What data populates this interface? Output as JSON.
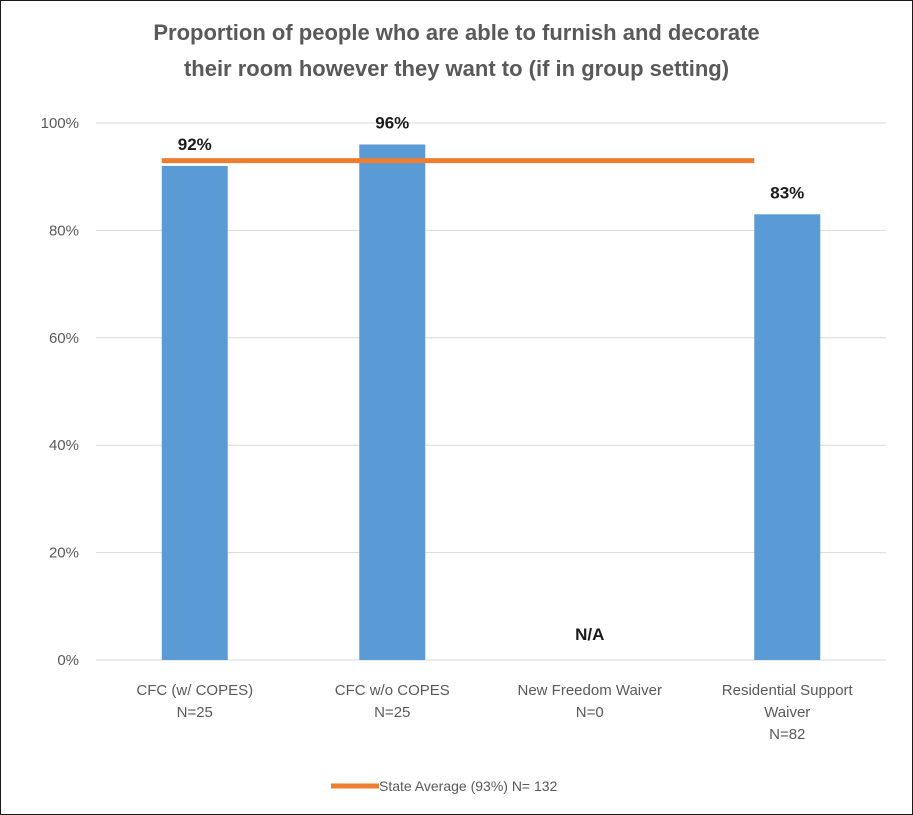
{
  "chart_data": {
    "type": "bar",
    "title_lines": [
      "Proportion of people who are able to furnish and decorate",
      "their room however they want to (if in group setting)"
    ],
    "categories": [
      [
        "CFC (w/ COPES)",
        "N=25"
      ],
      [
        "CFC w/o COPES",
        "N=25"
      ],
      [
        "New Freedom Waiver",
        "N=0"
      ],
      [
        "Residential Support",
        "Waiver",
        "N=82"
      ]
    ],
    "values": [
      92,
      96,
      null,
      83
    ],
    "data_labels": [
      "92%",
      "96%",
      "N/A",
      "83%"
    ],
    "ylim": [
      0,
      100
    ],
    "yticks": [
      0,
      20,
      40,
      60,
      80,
      100
    ],
    "ytick_labels": [
      "0%",
      "20%",
      "40%",
      "60%",
      "80%",
      "100%"
    ],
    "reference_line": {
      "value": 93,
      "legend_label": "State Average (93%) N= 132"
    },
    "grid": true,
    "legend_position": "bottom",
    "colors": {
      "bar": "#5B9BD5",
      "reference": "#ED7D31",
      "grid": "#D9D9D9"
    }
  }
}
